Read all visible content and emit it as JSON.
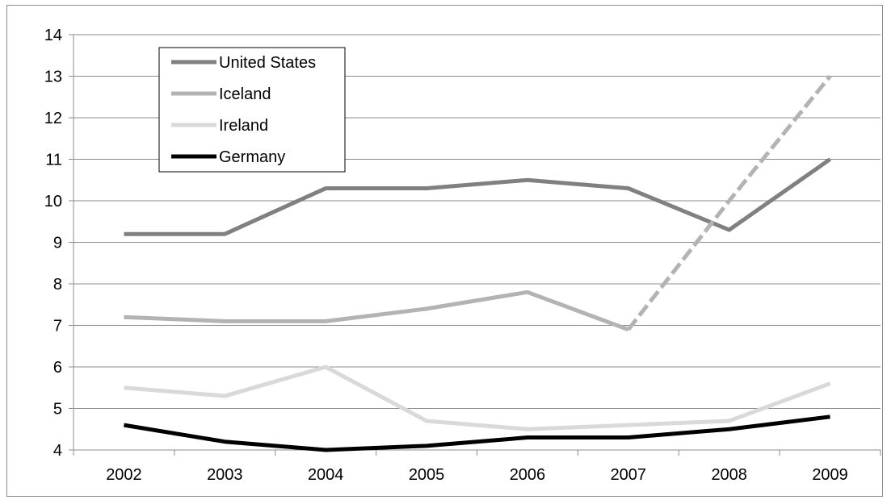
{
  "chart_data": {
    "type": "line",
    "title": "",
    "xlabel": "",
    "ylabel": "",
    "categories": [
      "2002",
      "2003",
      "2004",
      "2005",
      "2006",
      "2007",
      "2008",
      "2009"
    ],
    "ylim": [
      4,
      14
    ],
    "yticks": [
      4,
      5,
      6,
      7,
      8,
      9,
      10,
      11,
      12,
      13,
      14
    ],
    "grid": true,
    "legend_position": "top-left",
    "series": [
      {
        "name": "United States",
        "color": "#808080",
        "values": [
          9.2,
          9.2,
          10.3,
          10.3,
          10.5,
          10.3,
          9.3,
          11.0
        ]
      },
      {
        "name": "Iceland",
        "color": "#b3b3b3",
        "values": [
          7.2,
          7.1,
          7.1,
          7.4,
          7.8,
          6.9,
          10.0,
          13.0
        ],
        "dashed_from_index": 5
      },
      {
        "name": "Ireland",
        "color": "#d9d9d9",
        "values": [
          5.5,
          5.3,
          6.0,
          4.7,
          4.5,
          4.6,
          4.7,
          5.6
        ]
      },
      {
        "name": "Germany",
        "color": "#000000",
        "values": [
          4.6,
          4.2,
          4.0,
          4.1,
          4.3,
          4.3,
          4.5,
          4.8
        ]
      }
    ]
  }
}
